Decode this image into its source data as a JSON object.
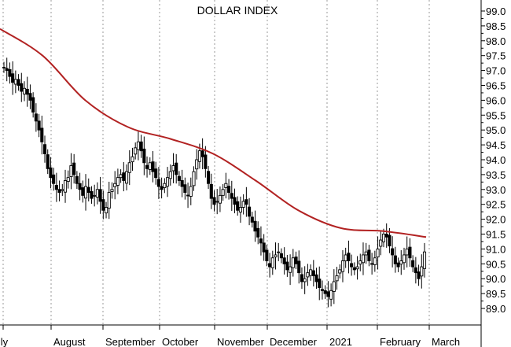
{
  "chart_data": {
    "type": "line",
    "title": "DOLLAR INDEX",
    "ylim": [
      88.5,
      99.2
    ],
    "y_ticks": [
      "89.0",
      "89.5",
      "90.0",
      "90.5",
      "91.0",
      "91.5",
      "92.0",
      "92.5",
      "93.0",
      "93.5",
      "94.0",
      "94.5",
      "95.0",
      "95.5",
      "96.0",
      "96.5",
      "97.0",
      "97.5",
      "98.0",
      "98.5",
      "99.0"
    ],
    "x_ticks": [
      "July",
      "August",
      "September",
      "October",
      "November",
      "December",
      "2021",
      "February",
      "March"
    ],
    "grid": "vertical dotted at month starts",
    "colors": {
      "price": "#000000",
      "moving_average": "#b22222"
    },
    "series": [
      {
        "style": "ohlc-bars",
        "values": [
          97.1,
          97.0,
          96.8,
          96.6,
          96.7,
          96.5,
          96.3,
          96.4,
          96.2,
          96.0,
          95.6,
          95.3,
          95.0,
          94.6,
          94.2,
          93.7,
          93.4,
          93.2,
          93.0,
          92.9,
          93.0,
          93.3,
          93.4,
          93.8,
          93.5,
          93.2,
          93.0,
          92.8,
          93.1,
          92.9,
          92.7,
          92.8,
          93.0,
          92.6,
          92.3,
          92.4,
          92.9,
          93.0,
          93.2,
          93.4,
          93.5,
          93.3,
          93.6,
          93.9,
          94.1,
          94.4,
          94.6,
          94.3,
          93.9,
          93.7,
          93.9,
          93.6,
          93.4,
          93.1,
          93.0,
          93.2,
          93.4,
          93.6,
          93.8,
          93.5,
          93.3,
          93.1,
          92.9,
          92.8,
          93.1,
          93.6,
          94.0,
          94.3,
          94.1,
          93.7,
          93.2,
          92.7,
          92.5,
          92.6,
          92.8,
          93.0,
          93.2,
          92.9,
          92.7,
          92.5,
          92.3,
          92.4,
          92.6,
          92.5,
          92.1,
          91.9,
          91.6,
          91.4,
          91.2,
          90.9,
          90.6,
          90.4,
          90.7,
          90.8,
          90.9,
          90.7,
          90.5,
          90.3,
          90.4,
          90.7,
          90.5,
          90.2,
          89.9,
          90.0,
          90.2,
          90.3,
          90.1,
          89.9,
          89.7,
          89.6,
          89.5,
          89.4,
          89.6,
          89.9,
          90.1,
          90.3,
          90.6,
          90.8,
          90.6,
          90.4,
          90.3,
          90.4,
          90.6,
          90.8,
          90.9,
          90.6,
          90.5,
          90.7,
          91.0,
          91.3,
          91.5,
          91.4,
          91.1,
          90.8,
          90.5,
          90.4,
          90.6,
          90.8,
          91.0,
          90.7,
          90.4,
          90.2,
          90.0,
          90.4,
          90.9
        ]
      },
      {
        "style": "line",
        "x_frac": [
          0.0,
          0.1,
          0.2,
          0.3,
          0.4,
          0.5,
          0.6,
          0.7,
          0.8,
          0.9,
          1.0
        ],
        "values": [
          98.4,
          97.5,
          96.0,
          95.1,
          94.7,
          94.2,
          93.3,
          92.3,
          91.7,
          91.6,
          91.4
        ]
      }
    ]
  }
}
